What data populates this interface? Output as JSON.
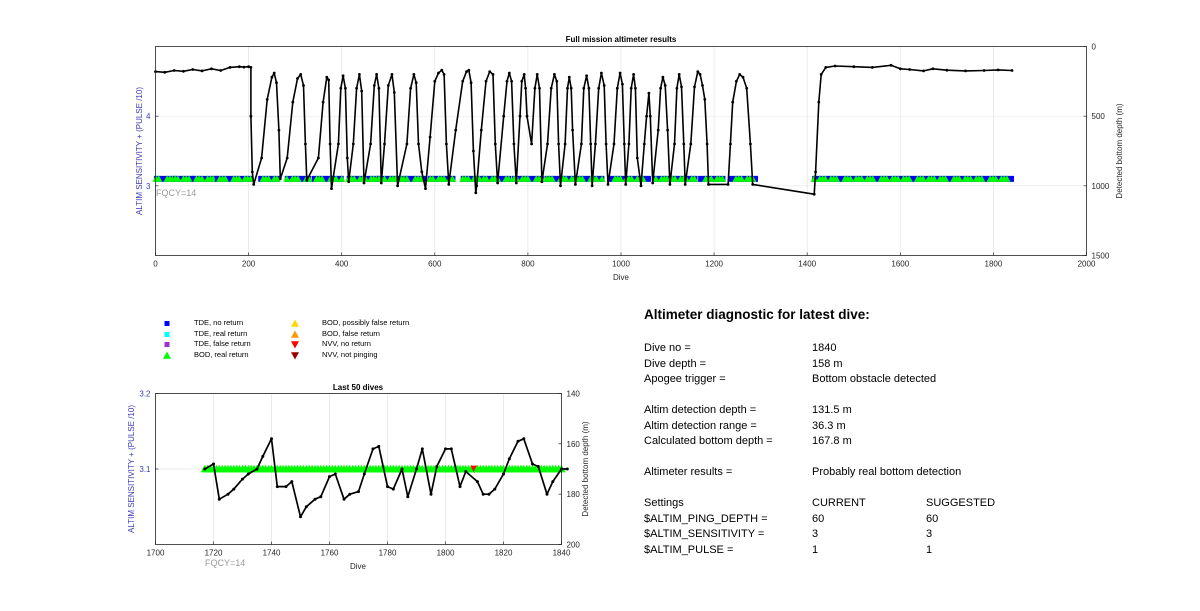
{
  "top_chart": {
    "title": "Full mission altimeter results",
    "xlabel": "Dive",
    "ylabel_left": "ALTIM SENSITIVITY + (PULSE /10)",
    "ylabel_right": "Detected bottom depth (m)",
    "fqcy_label": "FQCY=14",
    "xticks": [
      "0",
      "200",
      "400",
      "600",
      "800",
      "1000",
      "1200",
      "1400",
      "1600",
      "1800",
      "2000"
    ],
    "yticks_left": [
      "3",
      "4"
    ],
    "yticks_right": [
      "0",
      "500",
      "1000",
      "1500"
    ]
  },
  "bottom_chart": {
    "title": "Last 50 dives",
    "xlabel": "Dive",
    "ylabel_left": "ALTIM SENSITIVITY + (PULSE /10)",
    "ylabel_right": "Detected bottom depth (m)",
    "fqcy_label": "FQCY=14",
    "xticks": [
      "1700",
      "1720",
      "1740",
      "1760",
      "1780",
      "1800",
      "1820",
      "1840"
    ],
    "yticks_left": [
      "3.1",
      "3.2"
    ],
    "yticks_right": [
      "140",
      "160",
      "180",
      "200"
    ]
  },
  "legend": [
    {
      "label": "TDE, no return",
      "marker": "square",
      "color": "#0000ff"
    },
    {
      "label": "TDE, real return",
      "marker": "square",
      "color": "#00ffff"
    },
    {
      "label": "TDE, false return",
      "marker": "square",
      "color": "#9933cc"
    },
    {
      "label": "BOD, real return",
      "marker": "triangle-up",
      "color": "#00ff00"
    },
    {
      "label": "BOD, possibly false return",
      "marker": "triangle-up",
      "color": "#ffd700"
    },
    {
      "label": "BOD, false return",
      "marker": "triangle-up",
      "color": "#ff9900"
    },
    {
      "label": "NVV, no return",
      "marker": "triangle-down",
      "color": "#ff0000"
    },
    {
      "label": "NVV, not pinging",
      "marker": "triangle-down",
      "color": "#990000"
    }
  ],
  "diagnostic": {
    "heading": "Altimeter diagnostic for latest dive:",
    "dive_no_label": "Dive no =",
    "dive_no_value": "1840",
    "dive_depth_label": "Dive depth =",
    "dive_depth_value": "158 m",
    "apogee_label": "Apogee trigger =",
    "apogee_value": "Bottom obstacle detected",
    "altim_depth_label": "Altim detection depth =",
    "altim_depth_value": "131.5 m",
    "altim_range_label": "Altim detection range =",
    "altim_range_value": "36.3 m",
    "calc_depth_label": "Calculated bottom depth =",
    "calc_depth_value": "167.8 m",
    "results_label": "Altimeter results =",
    "results_value": "Probably real bottom detection",
    "settings_label": "Settings",
    "current_label": "CURRENT",
    "suggested_label": "SUGGESTED",
    "ping_depth_label": "$ALTIM_PING_DEPTH =",
    "ping_depth_current": "60",
    "ping_depth_suggested": "60",
    "sensitivity_label": "$ALTIM_SENSITIVITY =",
    "sensitivity_current": "3",
    "sensitivity_suggested": "3",
    "pulse_label": "$ALTIM_PULSE =",
    "pulse_current": "1",
    "pulse_suggested": "1"
  },
  "chart_data": [
    {
      "type": "scatter",
      "title": "Full mission altimeter results",
      "xlabel": "Dive",
      "ylabel": "ALTIM SENSITIVITY + (PULSE /10)",
      "y2label": "Detected bottom depth (m)",
      "xlim": [
        0,
        2000
      ],
      "ylim": [
        2.0,
        5.0
      ],
      "y2lim": [
        1500,
        0
      ],
      "y2_reversed": true,
      "grid": true,
      "sensitivity_series": {
        "value": 3.1,
        "segments": [
          [
            1,
            40
          ],
          [
            42,
            80
          ],
          [
            82,
            130
          ],
          [
            132,
            205
          ],
          [
            225,
            262
          ],
          [
            282,
            330
          ],
          [
            340,
            400
          ],
          [
            415,
            475
          ],
          [
            480,
            535
          ],
          [
            540,
            580
          ],
          [
            590,
            640
          ],
          [
            660,
            700
          ],
          [
            705,
            760
          ],
          [
            770,
            830
          ],
          [
            840,
            900
          ],
          [
            905,
            960
          ],
          [
            975,
            1060
          ],
          [
            1075,
            1105
          ],
          [
            1110,
            1160
          ],
          [
            1170,
            1220
          ],
          [
            1235,
            1290
          ],
          [
            1415,
            1840
          ]
        ]
      },
      "depth_series": {
        "name": "Detected bottom depth",
        "points": [
          [
            0,
            180
          ],
          [
            20,
            185
          ],
          [
            40,
            172
          ],
          [
            60,
            178
          ],
          [
            80,
            165
          ],
          [
            100,
            175
          ],
          [
            120,
            160
          ],
          [
            140,
            172
          ],
          [
            160,
            150
          ],
          [
            180,
            145
          ],
          [
            190,
            148
          ],
          [
            200,
            145
          ],
          [
            205,
            150
          ],
          [
            205,
            500
          ],
          [
            208,
            900
          ],
          [
            211,
            990
          ],
          [
            228,
            800
          ],
          [
            240,
            380
          ],
          [
            250,
            220
          ],
          [
            255,
            190
          ],
          [
            260,
            260
          ],
          [
            265,
            600
          ],
          [
            268,
            950
          ],
          [
            283,
            800
          ],
          [
            295,
            400
          ],
          [
            305,
            230
          ],
          [
            312,
            200
          ],
          [
            318,
            280
          ],
          [
            322,
            700
          ],
          [
            325,
            960
          ],
          [
            350,
            800
          ],
          [
            360,
            400
          ],
          [
            368,
            220
          ],
          [
            372,
            240
          ],
          [
            375,
            700
          ],
          [
            378,
            1020
          ],
          [
            393,
            700
          ],
          [
            398,
            300
          ],
          [
            403,
            210
          ],
          [
            408,
            300
          ],
          [
            412,
            800
          ],
          [
            415,
            970
          ],
          [
            425,
            700
          ],
          [
            432,
            300
          ],
          [
            438,
            200
          ],
          [
            443,
            320
          ],
          [
            448,
            980
          ],
          [
            462,
            700
          ],
          [
            470,
            280
          ],
          [
            475,
            200
          ],
          [
            480,
            300
          ],
          [
            485,
            980
          ],
          [
            492,
            700
          ],
          [
            500,
            280
          ],
          [
            508,
            200
          ],
          [
            513,
            330
          ],
          [
            520,
            1000
          ],
          [
            540,
            700
          ],
          [
            548,
            300
          ],
          [
            555,
            200
          ],
          [
            560,
            260
          ],
          [
            565,
            700
          ],
          [
            572,
            900
          ],
          [
            580,
            1020
          ],
          [
            590,
            650
          ],
          [
            600,
            250
          ],
          [
            608,
            190
          ],
          [
            615,
            170
          ],
          [
            620,
            200
          ],
          [
            625,
            700
          ],
          [
            630,
            990
          ],
          [
            645,
            600
          ],
          [
            660,
            250
          ],
          [
            668,
            180
          ],
          [
            673,
            170
          ],
          [
            678,
            260
          ],
          [
            683,
            750
          ],
          [
            688,
            1050
          ],
          [
            690,
            1000
          ],
          [
            700,
            600
          ],
          [
            710,
            250
          ],
          [
            718,
            180
          ],
          [
            725,
            200
          ],
          [
            730,
            700
          ],
          [
            735,
            980
          ],
          [
            748,
            500
          ],
          [
            755,
            250
          ],
          [
            760,
            190
          ],
          [
            765,
            250
          ],
          [
            770,
            700
          ],
          [
            775,
            980
          ],
          [
            783,
            500
          ],
          [
            787,
            250
          ],
          [
            792,
            200
          ],
          [
            795,
            300
          ],
          [
            798,
            500
          ],
          [
            808,
            700
          ],
          [
            815,
            300
          ],
          [
            820,
            200
          ],
          [
            825,
            300
          ],
          [
            830,
            970
          ],
          [
            842,
            700
          ],
          [
            850,
            300
          ],
          [
            857,
            200
          ],
          [
            862,
            250
          ],
          [
            866,
            700
          ],
          [
            870,
            1000
          ],
          [
            880,
            700
          ],
          [
            885,
            300
          ],
          [
            889,
            220
          ],
          [
            893,
            300
          ],
          [
            896,
            600
          ],
          [
            902,
            990
          ],
          [
            915,
            700
          ],
          [
            920,
            300
          ],
          [
            926,
            210
          ],
          [
            931,
            300
          ],
          [
            935,
            700
          ],
          [
            938,
            1000
          ],
          [
            945,
            700
          ],
          [
            952,
            300
          ],
          [
            958,
            190
          ],
          [
            964,
            280
          ],
          [
            968,
            700
          ],
          [
            972,
            990
          ],
          [
            985,
            700
          ],
          [
            992,
            300
          ],
          [
            998,
            190
          ],
          [
            1003,
            270
          ],
          [
            1007,
            700
          ],
          [
            1010,
            990
          ],
          [
            1017,
            700
          ],
          [
            1022,
            300
          ],
          [
            1027,
            200
          ],
          [
            1031,
            300
          ],
          [
            1035,
            800
          ],
          [
            1043,
            1000
          ],
          [
            1050,
            700
          ],
          [
            1055,
            500
          ],
          [
            1060,
            335
          ],
          [
            1063,
            500
          ],
          [
            1068,
            980
          ],
          [
            1080,
            600
          ],
          [
            1085,
            300
          ],
          [
            1090,
            220
          ],
          [
            1095,
            280
          ],
          [
            1100,
            600
          ],
          [
            1105,
            990
          ],
          [
            1115,
            700
          ],
          [
            1120,
            300
          ],
          [
            1125,
            200
          ],
          [
            1130,
            290
          ],
          [
            1135,
            700
          ],
          [
            1138,
            990
          ],
          [
            1150,
            700
          ],
          [
            1158,
            290
          ],
          [
            1165,
            180
          ],
          [
            1170,
            200
          ],
          [
            1175,
            280
          ],
          [
            1180,
            380
          ],
          [
            1185,
            700
          ],
          [
            1188,
            990
          ],
          [
            1230,
            990
          ],
          [
            1235,
            700
          ],
          [
            1240,
            400
          ],
          [
            1248,
            250
          ],
          [
            1255,
            200
          ],
          [
            1262,
            220
          ],
          [
            1270,
            300
          ],
          [
            1278,
            700
          ],
          [
            1283,
            990
          ],
          [
            1415,
            1060
          ],
          [
            1418,
            900
          ],
          [
            1425,
            400
          ],
          [
            1430,
            200
          ],
          [
            1440,
            150
          ],
          [
            1460,
            140
          ],
          [
            1500,
            145
          ],
          [
            1540,
            150
          ],
          [
            1580,
            135
          ],
          [
            1600,
            160
          ],
          [
            1620,
            165
          ],
          [
            1650,
            175
          ],
          [
            1670,
            160
          ],
          [
            1700,
            170
          ],
          [
            1740,
            175
          ],
          [
            1780,
            172
          ],
          [
            1810,
            168
          ],
          [
            1840,
            172
          ]
        ]
      }
    },
    {
      "type": "scatter",
      "title": "Last 50 dives",
      "xlabel": "Dive",
      "ylabel": "ALTIM SENSITIVITY + (PULSE /10)",
      "y2label": "Detected bottom depth (m)",
      "xlim": [
        1700,
        1840
      ],
      "ylim": [
        3.0,
        3.2
      ],
      "y2lim": [
        200,
        140
      ],
      "y2_reversed": true,
      "grid": true,
      "sensitivity_series": {
        "x_start": 1717,
        "x_end": 1840,
        "value": 3.1,
        "bod_real_return": "all dives except 1810",
        "nvv_no_return": [
          1810
        ]
      },
      "depth_series": {
        "name": "Detected bottom depth",
        "points": [
          [
            1717,
            170
          ],
          [
            1720,
            168
          ],
          [
            1722,
            182
          ],
          [
            1725,
            180
          ],
          [
            1727,
            178
          ],
          [
            1730,
            174
          ],
          [
            1732,
            172
          ],
          [
            1735,
            170
          ],
          [
            1737,
            165
          ],
          [
            1740,
            158
          ],
          [
            1742,
            177
          ],
          [
            1745,
            177
          ],
          [
            1747,
            175
          ],
          [
            1750,
            189
          ],
          [
            1752,
            185
          ],
          [
            1755,
            182
          ],
          [
            1757,
            181
          ],
          [
            1760,
            173
          ],
          [
            1762,
            172
          ],
          [
            1765,
            182
          ],
          [
            1767,
            180
          ],
          [
            1770,
            179
          ],
          [
            1772,
            172
          ],
          [
            1775,
            162
          ],
          [
            1777,
            161
          ],
          [
            1780,
            177
          ],
          [
            1782,
            178
          ],
          [
            1785,
            170
          ],
          [
            1787,
            181
          ],
          [
            1790,
            170
          ],
          [
            1792,
            162
          ],
          [
            1795,
            180
          ],
          [
            1797,
            169
          ],
          [
            1800,
            162
          ],
          [
            1802,
            162
          ],
          [
            1805,
            177
          ],
          [
            1807,
            171
          ],
          [
            1811,
            175
          ],
          [
            1813,
            180
          ],
          [
            1815,
            180
          ],
          [
            1817,
            178
          ],
          [
            1820,
            172
          ],
          [
            1822,
            166
          ],
          [
            1825,
            159
          ],
          [
            1827,
            158
          ],
          [
            1830,
            168
          ],
          [
            1832,
            169
          ],
          [
            1835,
            180
          ],
          [
            1837,
            175
          ],
          [
            1840,
            170
          ],
          [
            1842,
            170
          ]
        ]
      }
    }
  ]
}
